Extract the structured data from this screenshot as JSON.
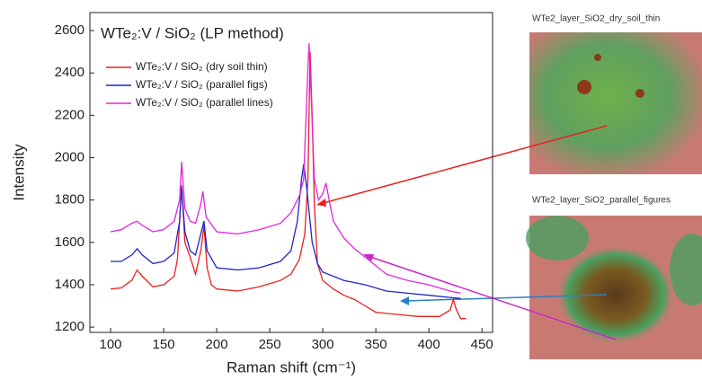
{
  "chart_data": {
    "type": "line",
    "title": "WTe₂:V / SiO₂ (LP method)",
    "x_label": "Raman shift (cm⁻¹)",
    "y_label": "Intensity",
    "xlim": [
      80.5,
      460
    ],
    "ylim": [
      1175,
      2685
    ],
    "xticks": [
      100,
      150,
      200,
      250,
      300,
      350,
      400,
      450
    ],
    "yticks": [
      1200,
      1400,
      1600,
      1800,
      2000,
      2200,
      2400,
      2600
    ],
    "series": [
      {
        "name": "WTe₂:V / SiO₂ (dry soil thin)",
        "color": "#e8201e",
        "x": [
          100,
          110,
          120,
          125,
          130,
          140,
          150,
          160,
          163,
          167,
          170,
          175,
          180,
          185,
          188,
          191,
          195,
          200,
          220,
          240,
          260,
          270,
          278,
          283,
          286,
          288,
          290,
          292,
          295,
          300,
          310,
          320,
          330,
          340,
          350,
          370,
          390,
          410,
          420,
          423,
          426,
          430,
          435
        ],
        "values": [
          1380,
          1385,
          1420,
          1470,
          1440,
          1390,
          1400,
          1440,
          1520,
          1870,
          1600,
          1530,
          1450,
          1560,
          1680,
          1480,
          1400,
          1380,
          1370,
          1390,
          1420,
          1450,
          1520,
          1640,
          1900,
          2500,
          2200,
          1780,
          1500,
          1420,
          1380,
          1350,
          1330,
          1300,
          1270,
          1260,
          1250,
          1250,
          1280,
          1330,
          1280,
          1240,
          1240
        ]
      },
      {
        "name": "WTe₂:V / SiO₂ (parallel figs)",
        "color": "#1f24c8",
        "x": [
          100,
          110,
          120,
          125,
          130,
          140,
          150,
          160,
          165,
          167,
          170,
          175,
          180,
          185,
          188,
          191,
          200,
          220,
          240,
          260,
          270,
          276,
          280,
          282,
          285,
          290,
          295,
          300,
          320,
          340,
          360,
          380,
          400,
          420,
          430
        ],
        "values": [
          1510,
          1510,
          1540,
          1570,
          1540,
          1500,
          1510,
          1550,
          1700,
          1860,
          1650,
          1560,
          1540,
          1640,
          1700,
          1560,
          1480,
          1470,
          1480,
          1510,
          1560,
          1700,
          1900,
          1970,
          1850,
          1600,
          1500,
          1460,
          1420,
          1400,
          1370,
          1360,
          1350,
          1340,
          1335
        ]
      },
      {
        "name": "WTe₂:V / SiO₂ (parallel lines)",
        "color": "#e025e0",
        "x": [
          100,
          110,
          120,
          125,
          130,
          140,
          150,
          160,
          165,
          167,
          170,
          175,
          180,
          185,
          187,
          190,
          200,
          220,
          240,
          260,
          270,
          278,
          282,
          285,
          287,
          289,
          292,
          296,
          300,
          303,
          306,
          310,
          320,
          330,
          340,
          350,
          360,
          380,
          400,
          420,
          430
        ],
        "values": [
          1650,
          1660,
          1690,
          1700,
          1680,
          1650,
          1660,
          1700,
          1800,
          1980,
          1760,
          1700,
          1690,
          1780,
          1840,
          1720,
          1650,
          1640,
          1660,
          1690,
          1740,
          1820,
          1900,
          2300,
          2540,
          2300,
          1900,
          1800,
          1830,
          1880,
          1800,
          1700,
          1620,
          1570,
          1530,
          1490,
          1450,
          1420,
          1400,
          1370,
          1360
        ]
      }
    ]
  },
  "images": [
    {
      "caption": "WTe2_layer_SiO2_dry_soil_thin"
    },
    {
      "caption": "WTe2_layer_SiO2_parallel_figures"
    }
  ]
}
